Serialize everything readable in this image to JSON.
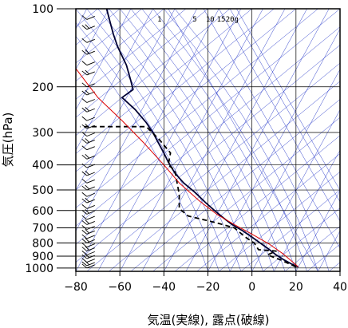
{
  "chart_data": {
    "type": "line",
    "title": "",
    "xlabel": "気温(実線), 露点(破線)",
    "ylabel": "気圧(hPa)",
    "xlim": [
      -80,
      40
    ],
    "ylim": [
      1030,
      100
    ],
    "y_scale": "log",
    "x_ticks": [
      "−80",
      "−60",
      "−40",
      "−20",
      "0",
      "20",
      "40"
    ],
    "y_ticks": [
      "100",
      "200",
      "300",
      "400",
      "500",
      "600",
      "700",
      "800",
      "900",
      "1000"
    ],
    "mixing_ratio_labels": [
      "1",
      "5",
      "10",
      "15",
      "20g"
    ],
    "series": [
      {
        "role": "temperature",
        "style": "solid",
        "color": "#000033",
        "points": [
          [
            21,
            990
          ],
          [
            18,
            965
          ],
          [
            14,
            925
          ],
          [
            11,
            890
          ],
          [
            8,
            850
          ],
          [
            5,
            815
          ],
          [
            0,
            760
          ],
          [
            -4,
            720
          ],
          [
            -9,
            680
          ],
          [
            -13,
            640
          ],
          [
            -17,
            600
          ],
          [
            -21,
            560
          ],
          [
            -26,
            510
          ],
          [
            -31,
            470
          ],
          [
            -35,
            430
          ],
          [
            -38,
            390
          ],
          [
            -40,
            360
          ],
          [
            -42,
            335
          ],
          [
            -45,
            300
          ],
          [
            -48,
            275
          ],
          [
            -53,
            245
          ],
          [
            -59,
            220
          ],
          [
            -54,
            205
          ],
          [
            -55,
            190
          ],
          [
            -57,
            165
          ],
          [
            -61,
            140
          ],
          [
            -63,
            125
          ],
          [
            -65,
            108
          ],
          [
            -66,
            100
          ]
        ]
      },
      {
        "role": "dewpoint",
        "style": "dashed",
        "color": "#000000",
        "points": [
          [
            20,
            990
          ],
          [
            13,
            930
          ],
          [
            7,
            890
          ],
          [
            11,
            860
          ],
          [
            3,
            850
          ],
          [
            1,
            800
          ],
          [
            -3,
            760
          ],
          [
            -8,
            700
          ],
          [
            -16,
            670
          ],
          [
            -29,
            630
          ],
          [
            -33,
            590
          ],
          [
            -33,
            520
          ],
          [
            -34,
            470
          ],
          [
            -35,
            420
          ],
          [
            -38,
            400
          ],
          [
            -37,
            360
          ],
          [
            -42,
            320
          ],
          [
            -48,
            285
          ],
          [
            -78,
            285
          ]
        ]
      },
      {
        "role": "parcel",
        "style": "solid",
        "color": "#dd0000",
        "points": [
          [
            21,
            990
          ],
          [
            18,
            940
          ],
          [
            14,
            880
          ],
          [
            8,
            810
          ],
          [
            0,
            740
          ],
          [
            -8,
            680
          ],
          [
            -16,
            620
          ],
          [
            -24,
            550
          ],
          [
            -33,
            470
          ],
          [
            -40,
            400
          ],
          [
            -49,
            330
          ],
          [
            -59,
            270
          ],
          [
            -70,
            220
          ],
          [
            -80,
            170
          ]
        ]
      }
    ],
    "grid": true,
    "background_lines": [
      "dry adiabats",
      "moist adiabats",
      "mixing ratio lines",
      "isotherms"
    ],
    "wind_barbs": "left margin, x ≈ −75 °C, 100–1000 hPa",
    "colors": {
      "temperature": "#000033",
      "dewpoint": "#000000",
      "parcel": "#dd0000",
      "background_lines": "#3344cc",
      "grid": "#000000"
    }
  }
}
